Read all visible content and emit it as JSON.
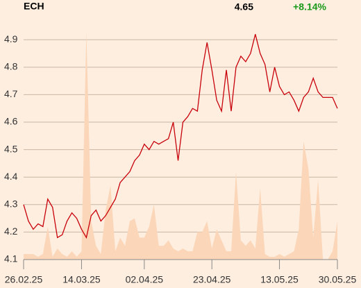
{
  "header": {
    "ticker": "ECH",
    "price": "4.65",
    "change": "+8.14%"
  },
  "chart_data": {
    "type": "line",
    "categories": [
      "26.02.25",
      null,
      null,
      null,
      null,
      null,
      null,
      null,
      null,
      null,
      null,
      null,
      "14.03.25",
      null,
      null,
      null,
      null,
      null,
      null,
      null,
      null,
      null,
      null,
      null,
      null,
      "02.04.25",
      null,
      null,
      null,
      null,
      null,
      null,
      null,
      null,
      null,
      null,
      null,
      null,
      null,
      "23.04.25",
      null,
      null,
      null,
      null,
      null,
      null,
      null,
      null,
      null,
      null,
      null,
      null,
      null,
      "13.05.25",
      null,
      null,
      null,
      null,
      null,
      null,
      null,
      null,
      null,
      null,
      null,
      "30.05.25"
    ],
    "values": [
      4.3,
      4.24,
      4.21,
      4.23,
      4.22,
      4.32,
      4.29,
      4.18,
      4.19,
      4.24,
      4.27,
      4.25,
      4.21,
      4.18,
      4.26,
      4.28,
      4.24,
      4.26,
      4.29,
      4.32,
      4.38,
      4.4,
      4.42,
      4.46,
      4.48,
      4.52,
      4.5,
      4.53,
      4.52,
      4.53,
      4.54,
      4.6,
      4.46,
      4.6,
      4.62,
      4.65,
      4.64,
      4.79,
      4.89,
      4.79,
      4.68,
      4.64,
      4.79,
      4.64,
      4.8,
      4.84,
      4.82,
      4.85,
      4.92,
      4.85,
      4.81,
      4.71,
      4.8,
      4.73,
      4.7,
      4.71,
      4.68,
      4.64,
      4.69,
      4.71,
      4.76,
      4.71,
      4.69,
      4.69,
      4.69,
      4.65
    ],
    "color": "#c8000a",
    "area_values": [
      4.12,
      4.12,
      4.12,
      4.11,
      4.12,
      4.22,
      4.11,
      4.14,
      4.12,
      4.11,
      4.13,
      4.11,
      4.13,
      4.93,
      4.24,
      4.15,
      4.12,
      4.28,
      4.37,
      4.13,
      4.18,
      4.15,
      4.24,
      4.25,
      4.18,
      4.18,
      4.22,
      4.3,
      4.15,
      4.15,
      4.17,
      4.14,
      4.13,
      4.14,
      4.13,
      4.13,
      4.2,
      4.2,
      4.24,
      4.14,
      4.21,
      4.17,
      4.13,
      4.13,
      4.42,
      4.17,
      4.15,
      4.17,
      4.14,
      4.36,
      4.12,
      4.11,
      4.11,
      4.12,
      4.11,
      4.12,
      4.13,
      4.21,
      4.53,
      4.43,
      4.18,
      4.39,
      4.1,
      4.1,
      4.13,
      4.24
    ],
    "area_color": "#fcd6b8",
    "ylim": [
      4.1,
      4.97
    ],
    "yticks": [
      4.1,
      4.2,
      4.3,
      4.4,
      4.5,
      4.6,
      4.7,
      4.8,
      4.9
    ],
    "grid": true
  }
}
